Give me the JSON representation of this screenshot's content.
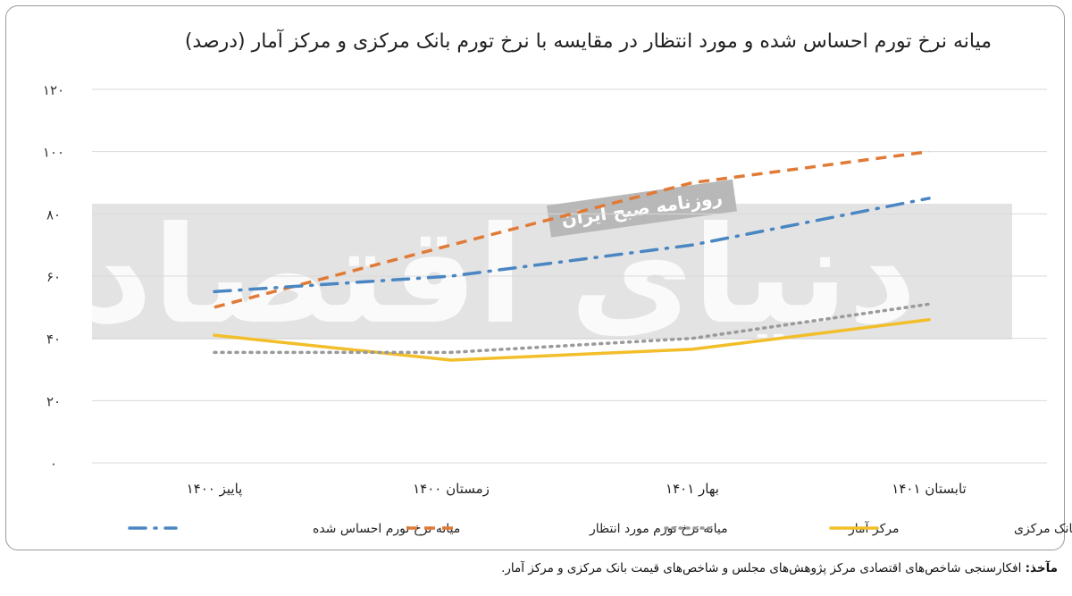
{
  "title": "میانه نرخ تورم احساس شده و مورد انتظار در مقایسه با نرخ تورم بانک مرکزی و مرکز آمار (درصد)",
  "watermark": {
    "main_text": "دنیای اقتصاد",
    "sub_text": "روزنامه صبح ایران"
  },
  "source": {
    "prefix": "مآخذ:",
    "text": " افکارسنجی شاخص‌های اقتصادی مرکز پژوهش‌های مجلس و شاخص‌های قیمت بانک مرکزی و مرکز آمار."
  },
  "chart_data": {
    "type": "line",
    "title": "میانه نرخ تورم احساس شده و مورد انتظار در مقایسه با نرخ تورم بانک مرکزی و مرکز آمار (درصد)",
    "categories": [
      "پاییز ۱۴۰۰",
      "زمستان ۱۴۰۰",
      "بهار ۱۴۰۱",
      "تابستان ۱۴۰۱"
    ],
    "y_ticks": [
      "۰",
      "۲۰",
      "۴۰",
      "۶۰",
      "۸۰",
      "۱۰۰",
      "۱۲۰"
    ],
    "ylim": [
      0,
      120
    ],
    "grid": true,
    "legend_position": "bottom",
    "series": [
      {
        "name": "میانه نرخ تورم احساس شده",
        "values": [
          55,
          60,
          70,
          85
        ],
        "color": "#4a86c2",
        "style": "dashdot"
      },
      {
        "name": "میانه نرخ تورم مورد انتظار",
        "values": [
          50,
          70,
          90,
          100
        ],
        "color": "#e07a36",
        "style": "dashed"
      },
      {
        "name": "مرکز آمار",
        "values": [
          35.5,
          35.5,
          40,
          51
        ],
        "color": "#9a9a9a",
        "style": "dotted"
      },
      {
        "name": "بانک مرکزی",
        "values": [
          41,
          33,
          36.5,
          46
        ],
        "color": "#f2be2a",
        "style": "solid"
      }
    ]
  }
}
